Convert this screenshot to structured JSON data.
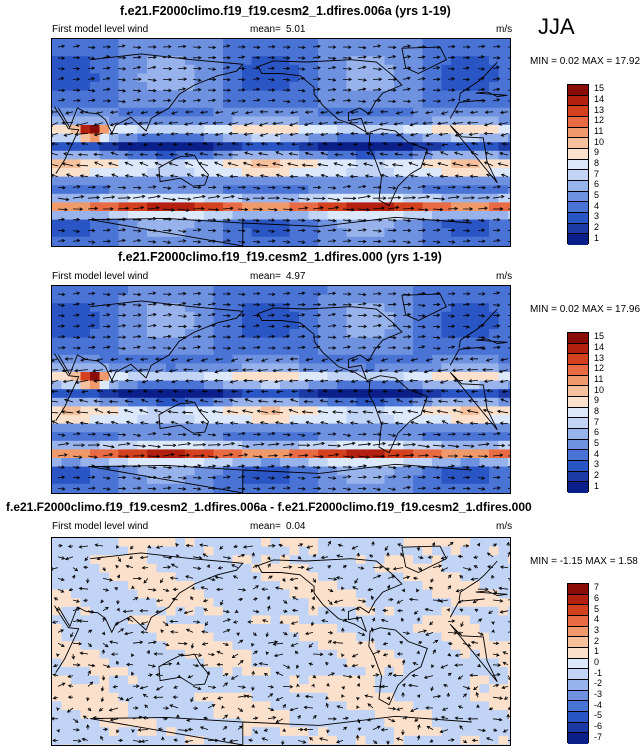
{
  "season": "JJA",
  "colors": {
    "diverging": [
      "#0b1f8a",
      "#1b3aa6",
      "#2a55c4",
      "#4a73d6",
      "#6f92e0",
      "#98b3ec",
      "#c2d4f6",
      "#dce8fb",
      "#fbe0cc",
      "#f6c09c",
      "#f09a6c",
      "#e96b43",
      "#d4411f",
      "#b3200f",
      "#8a0c06"
    ],
    "land": "#000000",
    "arrow": "#000000"
  },
  "panels": [
    {
      "title": "f.e21.F2000climo.f19_f19.cesm2_1.dfires.006a (yrs 1-19)",
      "left_label": "First model level wind",
      "mean_label": "mean=",
      "mean_value": "5.01",
      "units": "m/s",
      "minmax": "MIN =  0.02 MAX =  17.92",
      "colorbar_labels": [
        "15",
        "14",
        "13",
        "12",
        "11",
        "10",
        "9",
        "8",
        "7",
        "6",
        "5",
        "4",
        "3",
        "2",
        "1"
      ]
    },
    {
      "title": "f.e21.F2000climo.f19_f19.cesm2_1.dfires.000 (yrs 1-19)",
      "left_label": "First model level wind",
      "mean_label": "mean=",
      "mean_value": "4.97",
      "units": "m/s",
      "minmax": "MIN =  0.02 MAX =  17.96",
      "colorbar_labels": [
        "15",
        "14",
        "13",
        "12",
        "11",
        "10",
        "9",
        "8",
        "7",
        "6",
        "5",
        "4",
        "3",
        "2",
        "1"
      ]
    },
    {
      "title": "f.e21.F2000climo.f19_f19.cesm2_1.dfires.006a - f.e21.F2000climo.f19_f19.cesm2_1.dfires.000",
      "left_label": "First model level wind",
      "mean_label": "mean=",
      "mean_value": "0.04",
      "units": "m/s",
      "minmax": "MIN = -1.15 MAX =  1.58",
      "colorbar_labels": [
        "7",
        "6",
        "5",
        "4",
        "3",
        "2",
        "1",
        "0",
        "-1",
        "-2",
        "-3",
        "-4",
        "-5",
        "-6",
        "-7"
      ]
    }
  ],
  "chart_data": [
    {
      "type": "heatmap",
      "title": "f.e21.F2000climo.f19_f19.cesm2_1.dfires.006a (yrs 1-19)",
      "variable": "First model level wind",
      "units": "m/s",
      "mean": 5.01,
      "min": 0.02,
      "max": 17.92,
      "contour_levels": [
        1,
        2,
        3,
        4,
        5,
        6,
        7,
        8,
        9,
        10,
        11,
        12,
        13,
        14,
        15
      ],
      "overlay": "wind vectors",
      "season": "JJA"
    },
    {
      "type": "heatmap",
      "title": "f.e21.F2000climo.f19_f19.cesm2_1.dfires.000 (yrs 1-19)",
      "variable": "First model level wind",
      "units": "m/s",
      "mean": 4.97,
      "min": 0.02,
      "max": 17.96,
      "contour_levels": [
        1,
        2,
        3,
        4,
        5,
        6,
        7,
        8,
        9,
        10,
        11,
        12,
        13,
        14,
        15
      ],
      "overlay": "wind vectors",
      "season": "JJA"
    },
    {
      "type": "heatmap",
      "title": "f.e21.F2000climo.f19_f19.cesm2_1.dfires.006a - f.e21.F2000climo.f19_f19.cesm2_1.dfires.000",
      "variable": "First model level wind",
      "units": "m/s",
      "mean": 0.04,
      "min": -1.15,
      "max": 1.58,
      "contour_levels": [
        -7,
        -6,
        -5,
        -4,
        -3,
        -2,
        -1,
        0,
        1,
        2,
        3,
        4,
        5,
        6,
        7
      ],
      "overlay": "wind vectors",
      "season": "JJA"
    }
  ]
}
